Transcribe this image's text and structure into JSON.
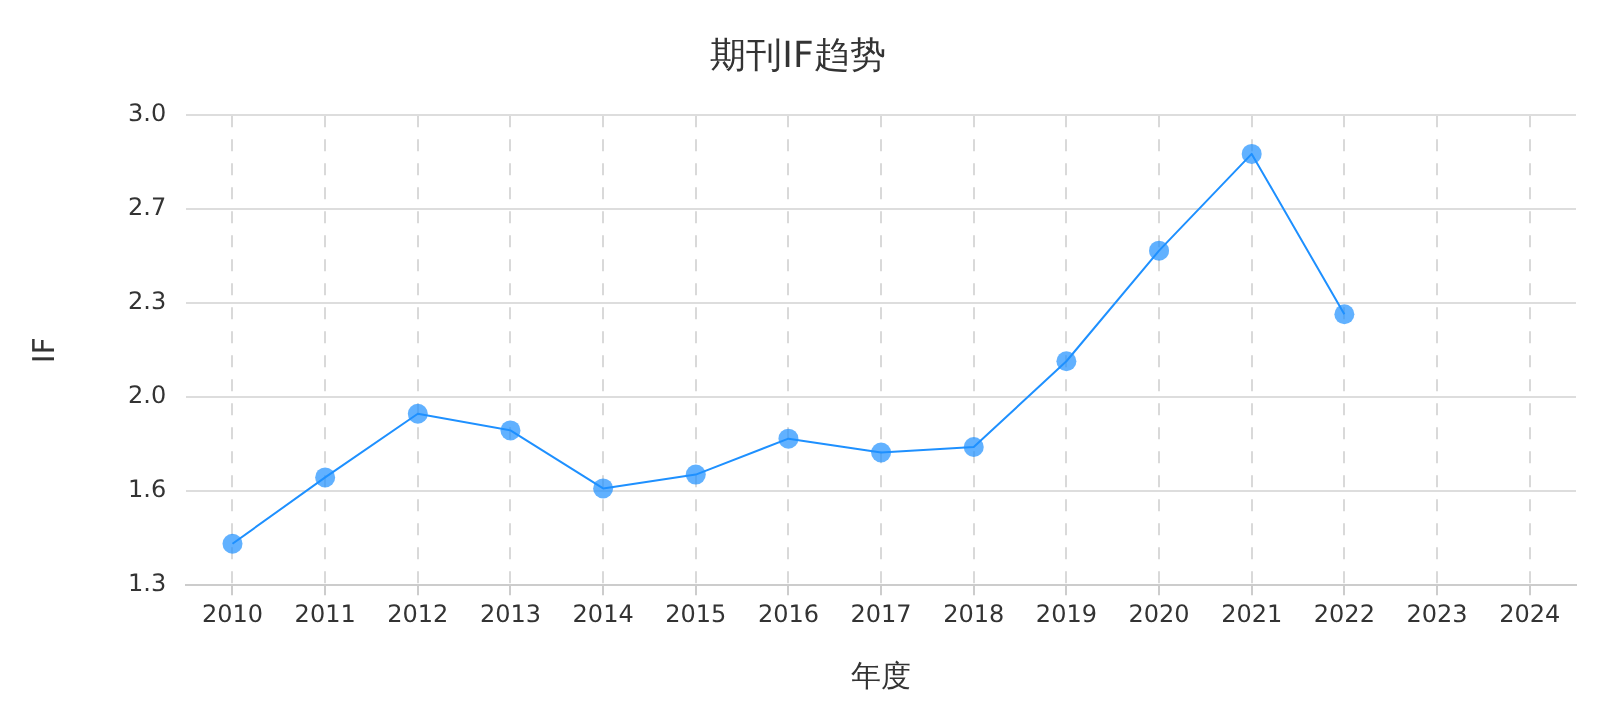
{
  "chart_data": {
    "type": "line",
    "title": "期刊IF趋势",
    "xlabel": "年度",
    "ylabel": "IF",
    "categories": [
      "2010",
      "2011",
      "2012",
      "2013",
      "2014",
      "2015",
      "2016",
      "2017",
      "2018",
      "2019",
      "2020",
      "2021",
      "2022",
      "2023",
      "2024"
    ],
    "series": [
      {
        "color": "#1e90ff",
        "values": [
          1.45,
          1.69,
          1.92,
          1.86,
          1.65,
          1.7,
          1.83,
          1.78,
          1.8,
          2.11,
          2.51,
          2.86,
          2.28,
          null,
          null
        ]
      }
    ],
    "ylim": [
      1.3,
      3.0
    ],
    "yticks": [
      {
        "value": 1.3,
        "label": "1.3"
      },
      {
        "value": 1.64,
        "label": "1.6"
      },
      {
        "value": 1.98,
        "label": "2.0"
      },
      {
        "value": 2.32,
        "label": "2.3"
      },
      {
        "value": 2.66,
        "label": "2.7"
      },
      {
        "value": 3.0,
        "label": "3.0"
      }
    ],
    "grid": true,
    "legend": false,
    "marker": "circle",
    "line_style": "solid"
  }
}
